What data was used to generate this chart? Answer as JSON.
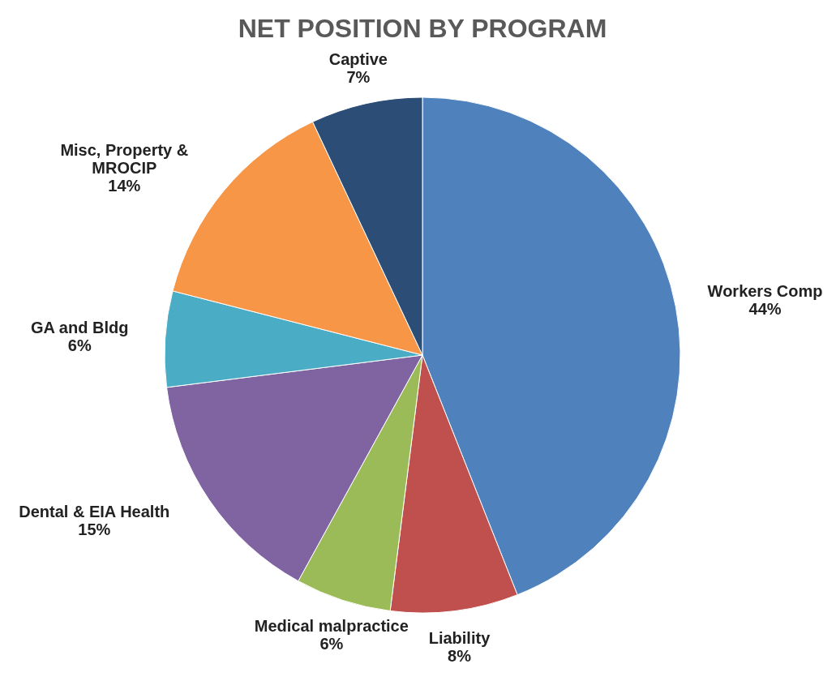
{
  "chart_data": {
    "type": "pie",
    "title": "NET POSITION BY PROGRAM",
    "categories": [
      "Workers Comp",
      "Liability",
      "Medical malpractice",
      "Dental & EIA Health",
      "GA and Bldg",
      "Misc, Property & MROCIP",
      "Captive"
    ],
    "values": [
      44,
      8,
      6,
      15,
      6,
      14,
      7
    ],
    "colors": [
      "#4f81bd",
      "#c0504d",
      "#9bbb59",
      "#8064a2",
      "#4bacc6",
      "#f79646",
      "#2c4d75"
    ],
    "value_labels": [
      "44%",
      "8%",
      "6%",
      "15%",
      "6%",
      "14%",
      "7%"
    ]
  }
}
